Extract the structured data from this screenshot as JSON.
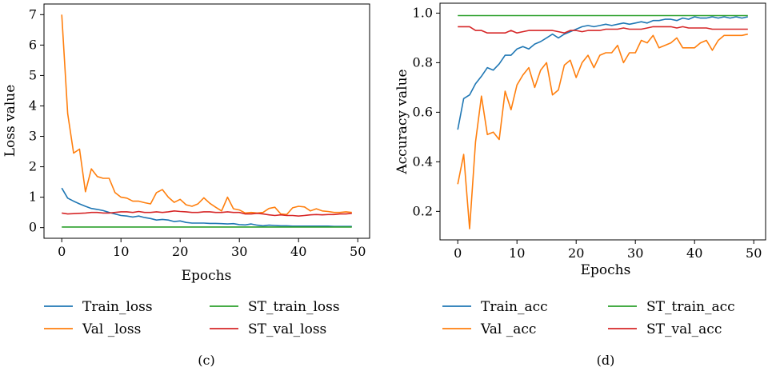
{
  "chart_data": [
    {
      "type": "line",
      "panel": "(c)",
      "xlabel": "Epochs",
      "ylabel": "Loss value",
      "xlim": [
        -3,
        52
      ],
      "ylim": [
        -0.35,
        7.35
      ],
      "xticks": [
        0,
        10,
        20,
        30,
        40,
        50
      ],
      "yticks": [
        0,
        1,
        2,
        3,
        4,
        5,
        6,
        7
      ],
      "grid": false,
      "legend_position": "below",
      "x": [
        0,
        1,
        2,
        3,
        4,
        5,
        6,
        7,
        8,
        9,
        10,
        11,
        12,
        13,
        14,
        15,
        16,
        17,
        18,
        19,
        20,
        21,
        22,
        23,
        24,
        25,
        26,
        27,
        28,
        29,
        30,
        31,
        32,
        33,
        34,
        35,
        36,
        37,
        38,
        39,
        40,
        41,
        42,
        43,
        44,
        45,
        46,
        47,
        48,
        49
      ],
      "series": [
        {
          "name": "Train_loss",
          "color": "#1f77b4",
          "values": [
            1.3,
            0.97,
            0.87,
            0.78,
            0.7,
            0.63,
            0.6,
            0.56,
            0.5,
            0.45,
            0.4,
            0.38,
            0.35,
            0.38,
            0.33,
            0.3,
            0.25,
            0.27,
            0.25,
            0.2,
            0.22,
            0.17,
            0.15,
            0.15,
            0.15,
            0.14,
            0.14,
            0.13,
            0.12,
            0.13,
            0.1,
            0.09,
            0.12,
            0.08,
            0.06,
            0.08,
            0.07,
            0.06,
            0.06,
            0.05,
            0.05,
            0.05,
            0.05,
            0.05,
            0.05,
            0.05,
            0.04,
            0.04,
            0.04,
            0.04
          ]
        },
        {
          "name": "Val _loss",
          "color": "#ff7f0e",
          "values": [
            7.0,
            3.75,
            2.45,
            2.58,
            1.18,
            1.93,
            1.68,
            1.62,
            1.62,
            1.15,
            1.0,
            0.97,
            0.87,
            0.87,
            0.82,
            0.78,
            1.15,
            1.25,
            1.0,
            0.83,
            0.93,
            0.75,
            0.7,
            0.78,
            0.98,
            0.8,
            0.67,
            0.55,
            1.0,
            0.62,
            0.58,
            0.48,
            0.5,
            0.48,
            0.5,
            0.63,
            0.67,
            0.45,
            0.43,
            0.65,
            0.7,
            0.68,
            0.55,
            0.62,
            0.55,
            0.53,
            0.5,
            0.5,
            0.52,
            0.5
          ]
        },
        {
          "name": "ST_train_loss",
          "color": "#2ca02c",
          "values": [
            0.02,
            0.02,
            0.02,
            0.02,
            0.02,
            0.02,
            0.02,
            0.02,
            0.02,
            0.02,
            0.02,
            0.02,
            0.02,
            0.02,
            0.02,
            0.02,
            0.02,
            0.02,
            0.02,
            0.02,
            0.02,
            0.02,
            0.02,
            0.02,
            0.02,
            0.02,
            0.02,
            0.02,
            0.02,
            0.02,
            0.02,
            0.02,
            0.02,
            0.02,
            0.02,
            0.02,
            0.02,
            0.02,
            0.02,
            0.02,
            0.02,
            0.02,
            0.02,
            0.02,
            0.02,
            0.02,
            0.02,
            0.02,
            0.02,
            0.02
          ]
        },
        {
          "name": "ST_val_loss",
          "color": "#d62728",
          "values": [
            0.48,
            0.45,
            0.46,
            0.47,
            0.48,
            0.5,
            0.5,
            0.48,
            0.48,
            0.5,
            0.52,
            0.52,
            0.5,
            0.53,
            0.5,
            0.5,
            0.52,
            0.5,
            0.52,
            0.55,
            0.53,
            0.52,
            0.5,
            0.5,
            0.52,
            0.52,
            0.5,
            0.5,
            0.52,
            0.5,
            0.5,
            0.45,
            0.45,
            0.47,
            0.45,
            0.42,
            0.4,
            0.42,
            0.4,
            0.4,
            0.38,
            0.4,
            0.42,
            0.43,
            0.42,
            0.43,
            0.43,
            0.45,
            0.45,
            0.47
          ]
        }
      ]
    },
    {
      "type": "line",
      "panel": "(d)",
      "xlabel": "Epochs",
      "ylabel": "Accuracy value",
      "xlim": [
        -3,
        52
      ],
      "ylim": [
        0.085,
        1.04
      ],
      "xticks": [
        0,
        10,
        20,
        30,
        40,
        50
      ],
      "yticks": [
        0.2,
        0.4,
        0.6,
        0.8,
        1.0
      ],
      "grid": false,
      "legend_position": "below",
      "x": [
        0,
        1,
        2,
        3,
        4,
        5,
        6,
        7,
        8,
        9,
        10,
        11,
        12,
        13,
        14,
        15,
        16,
        17,
        18,
        19,
        20,
        21,
        22,
        23,
        24,
        25,
        26,
        27,
        28,
        29,
        30,
        31,
        32,
        33,
        34,
        35,
        36,
        37,
        38,
        39,
        40,
        41,
        42,
        43,
        44,
        45,
        46,
        47,
        48,
        49
      ],
      "series": [
        {
          "name": "Train_acc",
          "color": "#1f77b4",
          "values": [
            0.53,
            0.655,
            0.67,
            0.715,
            0.745,
            0.78,
            0.77,
            0.795,
            0.83,
            0.83,
            0.855,
            0.865,
            0.855,
            0.875,
            0.885,
            0.9,
            0.915,
            0.9,
            0.915,
            0.925,
            0.935,
            0.945,
            0.95,
            0.945,
            0.95,
            0.955,
            0.95,
            0.955,
            0.96,
            0.955,
            0.96,
            0.965,
            0.96,
            0.97,
            0.97,
            0.975,
            0.975,
            0.97,
            0.98,
            0.975,
            0.985,
            0.98,
            0.98,
            0.985,
            0.98,
            0.985,
            0.98,
            0.985,
            0.98,
            0.985
          ]
        },
        {
          "name": "Val _acc",
          "color": "#ff7f0e",
          "values": [
            0.31,
            0.43,
            0.13,
            0.48,
            0.665,
            0.51,
            0.52,
            0.49,
            0.685,
            0.61,
            0.71,
            0.75,
            0.78,
            0.7,
            0.77,
            0.8,
            0.67,
            0.69,
            0.79,
            0.81,
            0.74,
            0.8,
            0.83,
            0.78,
            0.83,
            0.84,
            0.84,
            0.87,
            0.8,
            0.84,
            0.84,
            0.89,
            0.88,
            0.91,
            0.86,
            0.87,
            0.88,
            0.9,
            0.86,
            0.86,
            0.86,
            0.88,
            0.89,
            0.85,
            0.89,
            0.91,
            0.91,
            0.91,
            0.91,
            0.915
          ]
        },
        {
          "name": "ST_train_acc",
          "color": "#2ca02c",
          "values": [
            0.99,
            0.99,
            0.99,
            0.99,
            0.99,
            0.99,
            0.99,
            0.99,
            0.99,
            0.99,
            0.99,
            0.99,
            0.99,
            0.99,
            0.99,
            0.99,
            0.99,
            0.99,
            0.99,
            0.99,
            0.99,
            0.99,
            0.99,
            0.99,
            0.99,
            0.99,
            0.99,
            0.99,
            0.99,
            0.99,
            0.99,
            0.99,
            0.99,
            0.99,
            0.99,
            0.99,
            0.99,
            0.99,
            0.99,
            0.99,
            0.99,
            0.99,
            0.99,
            0.99,
            0.99,
            0.99,
            0.99,
            0.99,
            0.99,
            0.99
          ]
        },
        {
          "name": "ST_val_acc",
          "color": "#d62728",
          "values": [
            0.945,
            0.945,
            0.945,
            0.93,
            0.93,
            0.92,
            0.92,
            0.92,
            0.92,
            0.93,
            0.92,
            0.925,
            0.93,
            0.93,
            0.93,
            0.93,
            0.93,
            0.925,
            0.92,
            0.93,
            0.93,
            0.925,
            0.93,
            0.93,
            0.93,
            0.935,
            0.935,
            0.935,
            0.94,
            0.935,
            0.935,
            0.935,
            0.94,
            0.945,
            0.945,
            0.945,
            0.945,
            0.94,
            0.945,
            0.94,
            0.94,
            0.94,
            0.94,
            0.935,
            0.935,
            0.935,
            0.935,
            0.935,
            0.935,
            0.935
          ]
        }
      ]
    }
  ]
}
